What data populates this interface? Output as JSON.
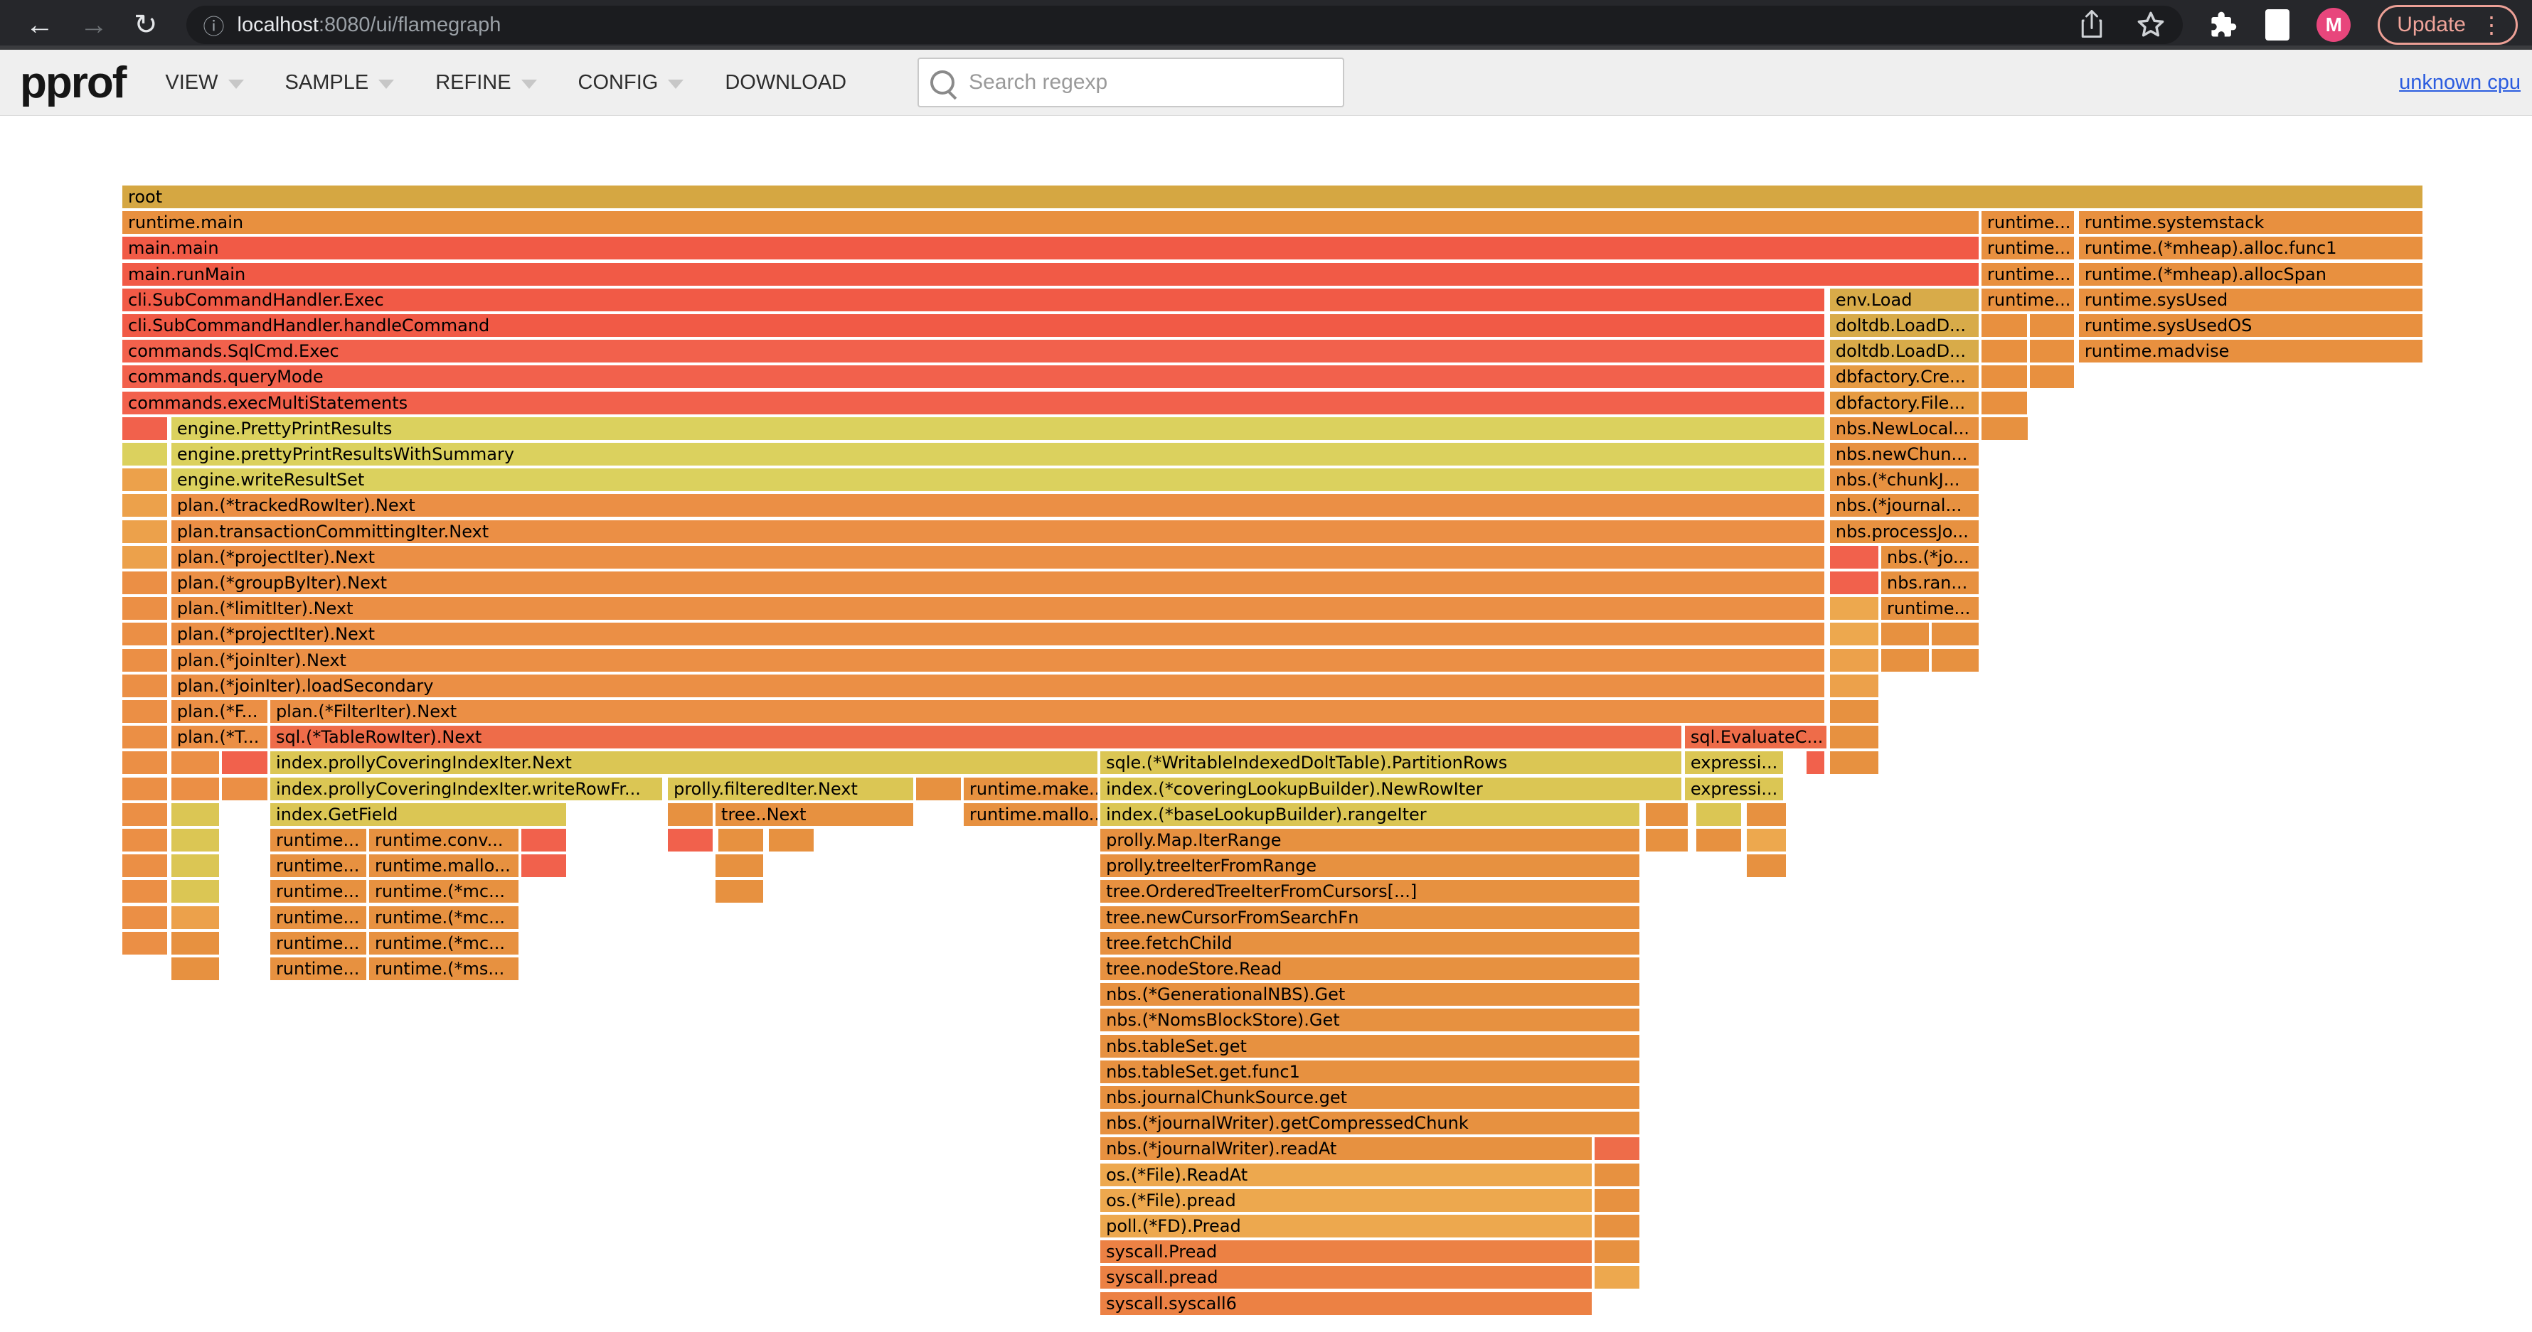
{
  "browser": {
    "back_glyph": "←",
    "forward_glyph": "→",
    "reload_glyph": "↻",
    "info_glyph": "ⓘ",
    "url_host": "localhost",
    "url_path": ":8080/ui/flamegraph",
    "avatar_letter": "M",
    "update_label": "Update",
    "more_glyph": "⋮"
  },
  "toolbar": {
    "logo": "pprof",
    "menus": [
      {
        "label": "VIEW",
        "caret": true
      },
      {
        "label": "SAMPLE",
        "caret": true
      },
      {
        "label": "REFINE",
        "caret": true
      },
      {
        "label": "CONFIG",
        "caret": true
      },
      {
        "label": "DOWNLOAD",
        "caret": false
      }
    ],
    "search_placeholder": "Search regexp",
    "profile_link": "unknown cpu"
  },
  "palette": {
    "gold": "#d5a742",
    "gold2": "#d8ab49",
    "or1": "#e8903f",
    "or2": "#eb8f45",
    "or4": "#e79140",
    "dbf": "#e69b42",
    "red1": "#f15a46",
    "red2": "#f2614c",
    "kh1": "#dbd15e",
    "kh2": "#dbc654",
    "ro": "#ee6c49",
    "osl": "#eda84e",
    "sys": "#ec8144",
    "sr": "#f1614c",
    "lo2": "#eca14b"
  },
  "flamegraph": {
    "row_pitch": 36.2,
    "rows": [
      [
        [
          0,
          100,
          "root",
          "gold"
        ]
      ],
      [
        [
          0,
          80.71,
          "runtime.main",
          "or1"
        ],
        [
          80.83,
          4.02,
          "runtime...",
          "or1"
        ],
        [
          85.06,
          14.94,
          "runtime.systemstack",
          "or1"
        ]
      ],
      [
        [
          0,
          80.71,
          "main.main",
          "red1"
        ],
        [
          80.83,
          4.02,
          "runtime...",
          "or1"
        ],
        [
          85.06,
          14.94,
          "runtime.(*mheap).alloc.func1",
          "or1"
        ]
      ],
      [
        [
          0,
          80.71,
          "main.runMain",
          "red1"
        ],
        [
          80.83,
          4.02,
          "runtime...",
          "or1"
        ],
        [
          85.06,
          14.94,
          "runtime.(*mheap).allocSpan",
          "or1"
        ]
      ],
      [
        [
          0,
          73.99,
          "cli.SubCommandHandler.Exec",
          "red1"
        ],
        [
          74.24,
          6.47,
          "env.Load",
          "gold2"
        ],
        [
          80.83,
          4.02,
          "runtime...",
          "or1"
        ],
        [
          85.06,
          14.94,
          "runtime.sysUsed",
          "or1"
        ]
      ],
      [
        [
          0,
          73.99,
          "cli.SubCommandHandler.handleCommand",
          "red1"
        ],
        [
          74.24,
          6.47,
          "doltdb.LoadD...",
          "gold2"
        ],
        [
          80.83,
          1.98,
          "",
          "or1"
        ],
        [
          82.93,
          1.92,
          "",
          "or1"
        ],
        [
          85.06,
          14.94,
          "runtime.sysUsedOS",
          "or1"
        ]
      ],
      [
        [
          0,
          73.99,
          "commands.SqlCmd.Exec",
          "red2"
        ],
        [
          74.24,
          6.47,
          "doltdb.LoadD...",
          "gold2"
        ],
        [
          80.83,
          1.98,
          "",
          "or1"
        ],
        [
          82.93,
          1.92,
          "",
          "or1"
        ],
        [
          85.06,
          14.94,
          "runtime.madvise",
          "or1"
        ]
      ],
      [
        [
          0,
          73.99,
          "commands.queryMode",
          "red2"
        ],
        [
          74.24,
          6.47,
          "dbfactory.Cre...",
          "dbf"
        ],
        [
          80.83,
          1.98,
          "",
          "or1"
        ],
        [
          82.93,
          1.92,
          "",
          "or1"
        ]
      ],
      [
        [
          0,
          73.99,
          "commands.execMultiStatements",
          "red2"
        ],
        [
          74.24,
          6.47,
          "dbfactory.File...",
          "dbf"
        ],
        [
          80.83,
          1.98,
          "",
          "or1"
        ]
      ],
      [
        [
          0,
          1.95,
          "",
          "sr"
        ],
        [
          2.13,
          71.86,
          "engine.PrettyPrintResults",
          "kh1"
        ],
        [
          74.24,
          6.47,
          "nbs.NewLocal...",
          "or4"
        ],
        [
          80.83,
          2.01,
          "",
          "or4"
        ]
      ],
      [
        [
          0,
          1.95,
          "",
          "kh1"
        ],
        [
          2.13,
          71.86,
          "engine.prettyPrintResultsWithSummary",
          "kh1"
        ],
        [
          74.24,
          6.47,
          "nbs.newChun...",
          "or4"
        ]
      ],
      [
        [
          0,
          1.95,
          "",
          "lo2"
        ],
        [
          2.13,
          71.86,
          "engine.writeResultSet",
          "kh1"
        ],
        [
          74.24,
          6.47,
          "nbs.(*chunkJ...",
          "or4"
        ]
      ],
      [
        [
          0,
          1.95,
          "",
          "lo2"
        ],
        [
          2.13,
          71.86,
          "plan.(*trackedRowIter).Next",
          "or2"
        ],
        [
          74.24,
          6.47,
          "nbs.(*journal...",
          "or4"
        ]
      ],
      [
        [
          0,
          1.95,
          "",
          "lo2"
        ],
        [
          2.13,
          71.86,
          "plan.transactionCommittingIter.Next",
          "or2"
        ],
        [
          74.24,
          6.47,
          "nbs.processJo...",
          "or4"
        ]
      ],
      [
        [
          0,
          1.95,
          "",
          "lo2"
        ],
        [
          2.13,
          71.86,
          "plan.(*projectIter).Next",
          "or2"
        ],
        [
          74.24,
          2.1,
          "",
          "sr"
        ],
        [
          76.47,
          4.24,
          "nbs.(*jo...",
          "or4"
        ]
      ],
      [
        [
          0,
          1.95,
          "",
          "or2"
        ],
        [
          2.13,
          71.86,
          "plan.(*groupByIter).Next",
          "or2"
        ],
        [
          74.24,
          2.1,
          "",
          "sr"
        ],
        [
          76.47,
          4.24,
          "nbs.ran...",
          "or4"
        ]
      ],
      [
        [
          0,
          1.95,
          "",
          "or2"
        ],
        [
          2.13,
          71.86,
          "plan.(*limitIter).Next",
          "or2"
        ],
        [
          74.24,
          2.1,
          "",
          "osl"
        ],
        [
          76.47,
          4.24,
          "runtime...",
          "or4"
        ]
      ],
      [
        [
          0,
          1.95,
          "",
          "or2"
        ],
        [
          2.13,
          71.86,
          "plan.(*projectIter).Next",
          "or2"
        ],
        [
          74.24,
          2.1,
          "",
          "osl"
        ],
        [
          76.47,
          2.07,
          "",
          "or4"
        ],
        [
          78.66,
          2.05,
          "",
          "or4"
        ]
      ],
      [
        [
          0,
          1.95,
          "",
          "or2"
        ],
        [
          2.13,
          71.86,
          "plan.(*joinIter).Next",
          "or2"
        ],
        [
          74.24,
          2.1,
          "",
          "lo2"
        ],
        [
          76.47,
          2.07,
          "",
          "or4"
        ],
        [
          78.66,
          2.05,
          "",
          "or4"
        ]
      ],
      [
        [
          0,
          1.95,
          "",
          "or2"
        ],
        [
          2.13,
          71.86,
          "plan.(*joinIter).loadSecondary",
          "or2"
        ],
        [
          74.24,
          2.1,
          "",
          "lo2"
        ]
      ],
      [
        [
          0,
          1.95,
          "",
          "or2"
        ],
        [
          2.13,
          4.18,
          "plan.(*F...",
          "or2"
        ],
        [
          6.43,
          67.56,
          "plan.(*FilterIter).Next",
          "or2"
        ],
        [
          74.24,
          2.1,
          "",
          "or4"
        ]
      ],
      [
        [
          0,
          1.95,
          "",
          "or2"
        ],
        [
          2.13,
          4.18,
          "plan.(*T...",
          "or2"
        ],
        [
          6.43,
          61.35,
          "sql.(*TableRowIter).Next",
          "ro"
        ],
        [
          67.93,
          6.17,
          "sql.EvaluateC...",
          "ro"
        ],
        [
          74.24,
          2.1,
          "",
          "or4"
        ]
      ],
      [
        [
          0,
          1.95,
          "",
          "or2"
        ],
        [
          2.13,
          2.08,
          "",
          "or2"
        ],
        [
          4.33,
          1.98,
          "",
          "sr"
        ],
        [
          6.43,
          35.96,
          "index.prollyCoveringIndexIter.Next",
          "kh2"
        ],
        [
          42.52,
          25.26,
          "sqle.(*WritableIndexedDoltTable).PartitionRows",
          "kh2"
        ],
        [
          67.93,
          4.27,
          "expressi...",
          "kh2"
        ],
        [
          73.22,
          0.77,
          "",
          "sr"
        ],
        [
          74.24,
          2.1,
          "",
          "or4"
        ]
      ],
      [
        [
          0,
          1.95,
          "",
          "or2"
        ],
        [
          2.13,
          2.08,
          "",
          "or2"
        ],
        [
          4.33,
          1.98,
          "",
          "or2"
        ],
        [
          6.43,
          17.04,
          "index.prollyCoveringIndexIter.writeRowFr...",
          "kh2"
        ],
        [
          23.72,
          10.66,
          "prolly.filteredIter.Next",
          "kh2"
        ],
        [
          34.51,
          1.95,
          "",
          "or4"
        ],
        [
          36.58,
          5.81,
          "runtime.make...",
          "or4"
        ],
        [
          42.52,
          25.26,
          "index.(*coveringLookupBuilder).NewRowIter",
          "kh2"
        ],
        [
          67.93,
          4.27,
          "expressi...",
          "kh2"
        ]
      ],
      [
        [
          0,
          1.95,
          "",
          "or2"
        ],
        [
          2.13,
          2.08,
          "",
          "kh2"
        ],
        [
          6.43,
          12.86,
          "index.GetField",
          "kh2"
        ],
        [
          23.72,
          1.94,
          "",
          "or4"
        ],
        [
          25.79,
          8.59,
          "tree..Next",
          "or4"
        ],
        [
          36.58,
          5.81,
          "runtime.mallo...",
          "or4"
        ],
        [
          42.52,
          23.44,
          "index.(*baseLookupBuilder).rangeIter",
          "kh2"
        ],
        [
          66.23,
          1.83,
          "",
          "or4"
        ],
        [
          68.43,
          1.95,
          "",
          "kh2"
        ],
        [
          70.62,
          1.7,
          "",
          "or4"
        ]
      ],
      [
        [
          0,
          1.95,
          "",
          "or2"
        ],
        [
          2.13,
          2.08,
          "",
          "kh2"
        ],
        [
          6.43,
          4.18,
          "runtime...",
          "or4"
        ],
        [
          10.73,
          6.49,
          "runtime.conv...",
          "or4"
        ],
        [
          17.35,
          1.94,
          "",
          "sr"
        ],
        [
          23.72,
          1.94,
          "",
          "sr"
        ],
        [
          25.91,
          1.95,
          "",
          "or4"
        ],
        [
          28.1,
          1.96,
          "",
          "or4"
        ],
        [
          42.52,
          23.44,
          "prolly.Map.IterRange",
          "or4"
        ],
        [
          66.23,
          1.83,
          "",
          "or4"
        ],
        [
          68.43,
          1.95,
          "",
          "or4"
        ],
        [
          70.62,
          1.7,
          "",
          "osl"
        ]
      ],
      [
        [
          0,
          1.95,
          "",
          "or2"
        ],
        [
          2.13,
          2.08,
          "",
          "kh2"
        ],
        [
          6.43,
          4.18,
          "runtime...",
          "or4"
        ],
        [
          10.73,
          6.49,
          "runtime.mallo...",
          "or4"
        ],
        [
          17.35,
          1.94,
          "",
          "sr"
        ],
        [
          25.79,
          2.07,
          "",
          "or4"
        ],
        [
          42.52,
          23.44,
          "prolly.treeIterFromRange",
          "or4"
        ],
        [
          70.62,
          1.7,
          "",
          "or4"
        ]
      ],
      [
        [
          0,
          1.95,
          "",
          "or2"
        ],
        [
          2.13,
          2.08,
          "",
          "kh2"
        ],
        [
          6.43,
          4.18,
          "runtime...",
          "or4"
        ],
        [
          10.73,
          6.49,
          "runtime.(*mc...",
          "or4"
        ],
        [
          25.79,
          2.07,
          "",
          "or4"
        ],
        [
          42.52,
          23.44,
          "tree.OrderedTreeIterFromCursors[...]",
          "or4"
        ]
      ],
      [
        [
          0,
          1.95,
          "",
          "or2"
        ],
        [
          2.13,
          2.08,
          "",
          "lo2"
        ],
        [
          6.43,
          4.18,
          "runtime...",
          "or4"
        ],
        [
          10.73,
          6.49,
          "runtime.(*mc...",
          "or4"
        ],
        [
          42.52,
          23.44,
          "tree.newCursorFromSearchFn",
          "or4"
        ]
      ],
      [
        [
          0,
          1.95,
          "",
          "or2"
        ],
        [
          2.13,
          2.08,
          "",
          "or4"
        ],
        [
          6.43,
          4.18,
          "runtime...",
          "or4"
        ],
        [
          10.73,
          6.49,
          "runtime.(*mc...",
          "or4"
        ],
        [
          42.52,
          23.44,
          "tree.fetchChild",
          "or4"
        ]
      ],
      [
        [
          2.13,
          2.08,
          "",
          "or4"
        ],
        [
          6.43,
          4.18,
          "runtime...",
          "or4"
        ],
        [
          10.73,
          6.49,
          "runtime.(*ms...",
          "or4"
        ],
        [
          42.52,
          23.44,
          "tree.nodeStore.Read",
          "or4"
        ]
      ],
      [
        [
          42.52,
          23.44,
          "nbs.(*GenerationalNBS).Get",
          "or4"
        ]
      ],
      [
        [
          42.52,
          23.44,
          "nbs.(*NomsBlockStore).Get",
          "or4"
        ]
      ],
      [
        [
          42.52,
          23.44,
          "nbs.tableSet.get",
          "or4"
        ]
      ],
      [
        [
          42.52,
          23.44,
          "nbs.tableSet.get.func1",
          "or4"
        ]
      ],
      [
        [
          42.52,
          23.44,
          "nbs.journalChunkSource.get",
          "or4"
        ]
      ],
      [
        [
          42.52,
          23.44,
          "nbs.(*journalWriter).getCompressedChunk",
          "or4"
        ]
      ],
      [
        [
          42.52,
          21.36,
          "nbs.(*journalWriter).readAt",
          "or4"
        ],
        [
          64.01,
          1.95,
          "",
          "ro"
        ]
      ],
      [
        [
          42.52,
          21.36,
          "os.(*File).ReadAt",
          "osl"
        ],
        [
          64.01,
          1.95,
          "",
          "or4"
        ]
      ],
      [
        [
          42.52,
          21.36,
          "os.(*File).pread",
          "osl"
        ],
        [
          64.01,
          1.95,
          "",
          "or4"
        ]
      ],
      [
        [
          42.52,
          21.36,
          "poll.(*FD).Pread",
          "osl"
        ],
        [
          64.01,
          1.95,
          "",
          "or4"
        ]
      ],
      [
        [
          42.52,
          21.36,
          "syscall.Pread",
          "sys"
        ],
        [
          64.01,
          1.95,
          "",
          "or4"
        ]
      ],
      [
        [
          42.52,
          21.36,
          "syscall.pread",
          "sys"
        ],
        [
          64.01,
          1.95,
          "",
          "osl"
        ]
      ],
      [
        [
          42.52,
          21.36,
          "syscall.syscall6",
          "sys"
        ]
      ]
    ]
  }
}
